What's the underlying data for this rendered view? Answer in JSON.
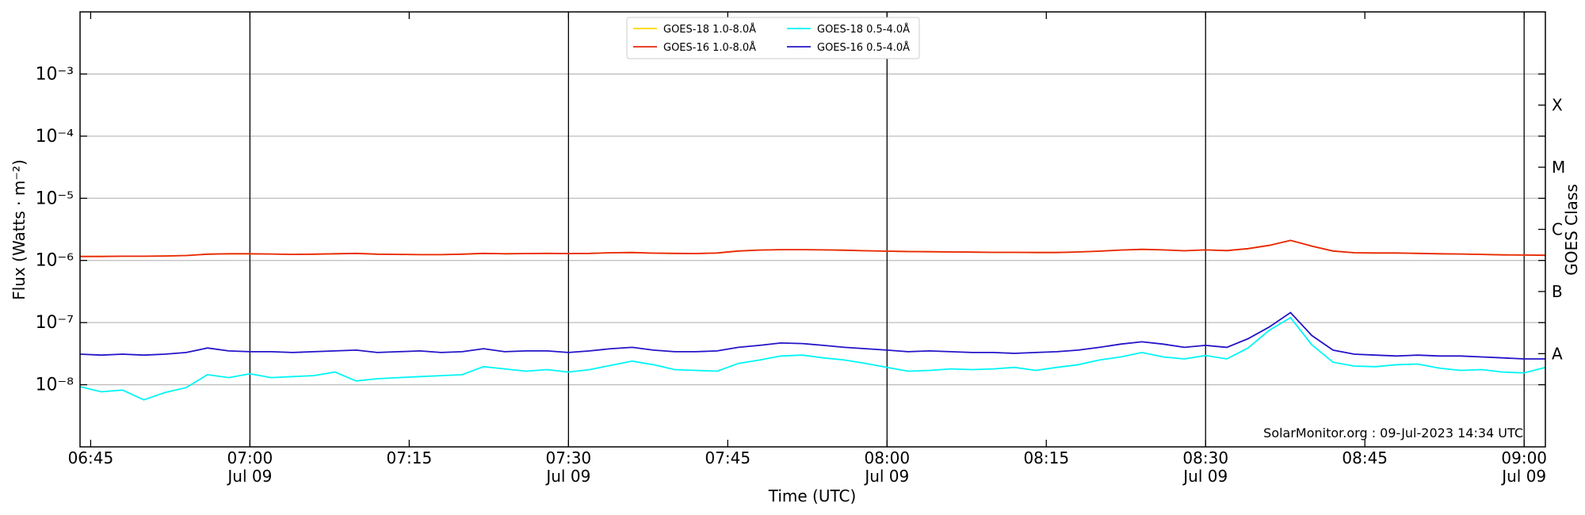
{
  "chart_data": {
    "type": "line",
    "xlabel": "Time (UTC)",
    "ylabel": "Flux (Watts · m⁻²)",
    "y2label": "GOES Class",
    "annotation": "SolarMonitor.org : 09-Jul-2023 14:34 UTC",
    "log_y": true,
    "grid": true,
    "legend": "upper center",
    "x": [
      "06:44",
      "06:46",
      "06:48",
      "06:50",
      "06:52",
      "06:54",
      "06:56",
      "06:58",
      "07:00",
      "07:02",
      "07:04",
      "07:06",
      "07:08",
      "07:10",
      "07:12",
      "07:14",
      "07:16",
      "07:18",
      "07:20",
      "07:22",
      "07:24",
      "07:26",
      "07:28",
      "07:30",
      "07:32",
      "07:34",
      "07:36",
      "07:38",
      "07:40",
      "07:42",
      "07:44",
      "07:46",
      "07:48",
      "07:50",
      "07:52",
      "07:54",
      "07:56",
      "07:58",
      "08:00",
      "08:02",
      "08:04",
      "08:06",
      "08:08",
      "08:10",
      "08:12",
      "08:14",
      "08:16",
      "08:18",
      "08:20",
      "08:22",
      "08:24",
      "08:26",
      "08:28",
      "08:30",
      "08:32",
      "08:34",
      "08:36",
      "08:38",
      "08:40",
      "08:42",
      "08:44",
      "08:46",
      "08:48",
      "08:50",
      "08:52",
      "08:54",
      "08:56",
      "08:58",
      "09:00",
      "09:02"
    ],
    "xlim": [
      "06:44",
      "09:02"
    ],
    "xticks": [
      "06:45",
      {
        "value": "07:00",
        "label": "07:00\nJul 09"
      },
      "07:15",
      {
        "value": "07:30",
        "label": "07:30\nJul 09"
      },
      "07:45",
      {
        "value": "08:00",
        "label": "08:00\nJul 09"
      },
      "08:15",
      {
        "value": "08:30",
        "label": "08:30\nJul 09"
      },
      "08:45",
      {
        "value": "09:00",
        "label": "09:00\nJul 09"
      }
    ],
    "vlines": [
      "07:00",
      "07:30",
      "08:00",
      "08:30",
      "09:00"
    ],
    "ylim": [
      1e-09,
      0.01
    ],
    "yticks": [
      {
        "value": 1e-08,
        "label": "10⁻⁸"
      },
      {
        "value": 1e-07,
        "label": "10⁻⁷"
      },
      {
        "value": 1e-06,
        "label": "10⁻⁶"
      },
      {
        "value": 1e-05,
        "label": "10⁻⁵"
      },
      {
        "value": 0.0001,
        "label": "10⁻⁴"
      },
      {
        "value": 0.001,
        "label": "10⁻³"
      }
    ],
    "y2lim": [
      1e-09,
      0.01
    ],
    "y2ticks": [
      {
        "value": 3.162e-08,
        "label": "A"
      },
      {
        "value": 3.162e-07,
        "label": "B"
      },
      {
        "value": 3.162e-06,
        "label": "C"
      },
      {
        "value": 3.162e-05,
        "label": "M"
      },
      {
        "value": 0.0003162,
        "label": "X"
      }
    ],
    "series": [
      {
        "name": "GOES-18 1.0-8.0Å",
        "color": "#ffd700",
        "values": [
          1.16e-06,
          1.16e-06,
          1.17e-06,
          1.17e-06,
          1.18e-06,
          1.2e-06,
          1.26e-06,
          1.28e-06,
          1.28e-06,
          1.27e-06,
          1.25e-06,
          1.26e-06,
          1.28e-06,
          1.3e-06,
          1.26e-06,
          1.25e-06,
          1.24e-06,
          1.24e-06,
          1.26e-06,
          1.3e-06,
          1.28e-06,
          1.29e-06,
          1.3e-06,
          1.29e-06,
          1.3e-06,
          1.33e-06,
          1.34e-06,
          1.31e-06,
          1.3e-06,
          1.29e-06,
          1.32e-06,
          1.42e-06,
          1.47e-06,
          1.49e-06,
          1.49e-06,
          1.48e-06,
          1.46e-06,
          1.43e-06,
          1.41e-06,
          1.39e-06,
          1.38e-06,
          1.37e-06,
          1.36e-06,
          1.35e-06,
          1.35e-06,
          1.34e-06,
          1.34e-06,
          1.37e-06,
          1.41e-06,
          1.47e-06,
          1.51e-06,
          1.48e-06,
          1.43e-06,
          1.48e-06,
          1.44e-06,
          1.55e-06,
          1.75e-06,
          2.1e-06,
          1.7e-06,
          1.42e-06,
          1.33e-06,
          1.32e-06,
          1.32e-06,
          1.3e-06,
          1.28e-06,
          1.27e-06,
          1.25e-06,
          1.23e-06,
          1.22e-06,
          1.21e-06
        ]
      },
      {
        "name": "GOES-16 1.0-8.0Å",
        "color": "#e8260c",
        "values": [
          1.16e-06,
          1.16e-06,
          1.17e-06,
          1.17e-06,
          1.18e-06,
          1.2e-06,
          1.26e-06,
          1.28e-06,
          1.28e-06,
          1.27e-06,
          1.25e-06,
          1.26e-06,
          1.28e-06,
          1.3e-06,
          1.26e-06,
          1.25e-06,
          1.24e-06,
          1.24e-06,
          1.26e-06,
          1.3e-06,
          1.28e-06,
          1.29e-06,
          1.3e-06,
          1.29e-06,
          1.3e-06,
          1.33e-06,
          1.34e-06,
          1.31e-06,
          1.3e-06,
          1.29e-06,
          1.32e-06,
          1.42e-06,
          1.47e-06,
          1.49e-06,
          1.49e-06,
          1.48e-06,
          1.46e-06,
          1.43e-06,
          1.41e-06,
          1.39e-06,
          1.38e-06,
          1.37e-06,
          1.36e-06,
          1.35e-06,
          1.35e-06,
          1.34e-06,
          1.34e-06,
          1.37e-06,
          1.41e-06,
          1.47e-06,
          1.51e-06,
          1.48e-06,
          1.43e-06,
          1.48e-06,
          1.44e-06,
          1.55e-06,
          1.75e-06,
          2.1e-06,
          1.7e-06,
          1.42e-06,
          1.33e-06,
          1.32e-06,
          1.32e-06,
          1.3e-06,
          1.28e-06,
          1.27e-06,
          1.25e-06,
          1.23e-06,
          1.22e-06,
          1.21e-06
        ]
      },
      {
        "name": "GOES-18 0.5-4.0Å",
        "color": "#00f5f5",
        "values": [
          9.3e-09,
          7.7e-09,
          8.2e-09,
          5.7e-09,
          7.5e-09,
          9e-09,
          1.45e-08,
          1.3e-08,
          1.5e-08,
          1.3e-08,
          1.35e-08,
          1.4e-08,
          1.6e-08,
          1.15e-08,
          1.25e-08,
          1.3e-08,
          1.35e-08,
          1.4e-08,
          1.45e-08,
          1.95e-08,
          1.8e-08,
          1.65e-08,
          1.75e-08,
          1.6e-08,
          1.75e-08,
          2.05e-08,
          2.4e-08,
          2.1e-08,
          1.75e-08,
          1.7e-08,
          1.65e-08,
          2.2e-08,
          2.5e-08,
          2.9e-08,
          3e-08,
          2.7e-08,
          2.5e-08,
          2.2e-08,
          1.9e-08,
          1.65e-08,
          1.7e-08,
          1.8e-08,
          1.75e-08,
          1.8e-08,
          1.9e-08,
          1.7e-08,
          1.9e-08,
          2.1e-08,
          2.5e-08,
          2.8e-08,
          3.3e-08,
          2.8e-08,
          2.6e-08,
          2.95e-08,
          2.6e-08,
          3.9e-08,
          7.5e-08,
          1.2e-07,
          4.4e-08,
          2.3e-08,
          2e-08,
          1.95e-08,
          2.1e-08,
          2.15e-08,
          1.85e-08,
          1.7e-08,
          1.75e-08,
          1.6e-08,
          1.55e-08,
          1.9e-08
        ]
      },
      {
        "name": "GOES-16 0.5-4.0Å",
        "color": "#2414c8",
        "values": [
          3.1e-08,
          3e-08,
          3.1e-08,
          3e-08,
          3.1e-08,
          3.3e-08,
          3.9e-08,
          3.5e-08,
          3.4e-08,
          3.4e-08,
          3.3e-08,
          3.4e-08,
          3.5e-08,
          3.6e-08,
          3.3e-08,
          3.4e-08,
          3.5e-08,
          3.3e-08,
          3.4e-08,
          3.8e-08,
          3.4e-08,
          3.5e-08,
          3.5e-08,
          3.3e-08,
          3.5e-08,
          3.8e-08,
          4e-08,
          3.6e-08,
          3.4e-08,
          3.4e-08,
          3.5e-08,
          4e-08,
          4.3e-08,
          4.7e-08,
          4.6e-08,
          4.3e-08,
          4e-08,
          3.8e-08,
          3.6e-08,
          3.4e-08,
          3.5e-08,
          3.4e-08,
          3.3e-08,
          3.3e-08,
          3.2e-08,
          3.3e-08,
          3.4e-08,
          3.6e-08,
          4e-08,
          4.5e-08,
          4.9e-08,
          4.5e-08,
          4e-08,
          4.3e-08,
          4e-08,
          5.5e-08,
          8.5e-08,
          1.45e-07,
          6.2e-08,
          3.6e-08,
          3.1e-08,
          3e-08,
          2.9e-08,
          3e-08,
          2.9e-08,
          2.9e-08,
          2.8e-08,
          2.7e-08,
          2.6e-08,
          2.6e-08
        ]
      }
    ]
  }
}
